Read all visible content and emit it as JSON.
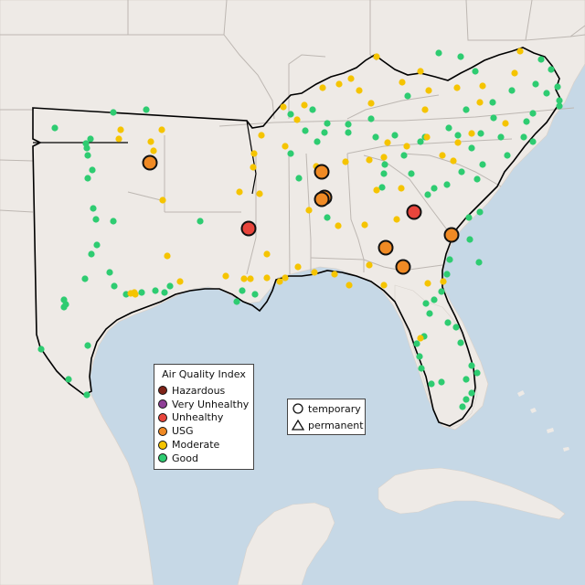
{
  "legend": {
    "title": "Air Quality Index",
    "items": [
      {
        "label": "Hazardous",
        "color": "#7e2318"
      },
      {
        "label": "Very Unhealthy",
        "color": "#8f3f97"
      },
      {
        "label": "Unhealthy",
        "color": "#e8453c"
      },
      {
        "label": "USG",
        "color": "#f08a24"
      },
      {
        "label": "Moderate",
        "color": "#f5c400"
      },
      {
        "label": "Good",
        "color": "#2ecc71"
      }
    ]
  },
  "shape_legend": {
    "temporary": "temporary",
    "permanent": "permanent"
  },
  "colors": {
    "water": "#c6d8e6",
    "land": "#eeeae6",
    "border": "#bdb7b2",
    "region_outline": "#000000"
  },
  "monitors": {
    "unhealthy": [
      [
        272,
        250
      ],
      [
        453,
        232
      ]
    ],
    "usg": [
      [
        164,
        178
      ],
      [
        352,
        188
      ],
      [
        355,
        216
      ],
      [
        352,
        218
      ],
      [
        494,
        257
      ],
      [
        422,
        271
      ],
      [
        441,
        292
      ]
    ],
    "moderate": [
      [
        132,
        142
      ],
      [
        130,
        152
      ],
      [
        165,
        155
      ],
      [
        177,
        142
      ],
      [
        168,
        165
      ],
      [
        178,
        219
      ],
      [
        183,
        280
      ],
      [
        197,
        308
      ],
      [
        247,
        302
      ],
      [
        267,
        305
      ],
      [
        274,
        305
      ],
      [
        292,
        304
      ],
      [
        306,
        308
      ],
      [
        312,
        304
      ],
      [
        326,
        292
      ],
      [
        344,
        298
      ],
      [
        366,
        300
      ],
      [
        382,
        312
      ],
      [
        420,
        312
      ],
      [
        404,
        290
      ],
      [
        399,
        246
      ],
      [
        434,
        240
      ],
      [
        412,
        208
      ],
      [
        439,
        206
      ],
      [
        420,
        172
      ],
      [
        424,
        156
      ],
      [
        445,
        160
      ],
      [
        467,
        150
      ],
      [
        484,
        170
      ],
      [
        501,
        156
      ],
      [
        516,
        146
      ],
      [
        525,
        112
      ],
      [
        553,
        135
      ],
      [
        569,
        56
      ],
      [
        563,
        80
      ],
      [
        528,
        94
      ],
      [
        500,
        96
      ],
      [
        469,
        99
      ],
      [
        440,
        90
      ],
      [
        406,
        113
      ],
      [
        393,
        99
      ],
      [
        384,
        86
      ],
      [
        371,
        92
      ],
      [
        353,
        96
      ],
      [
        333,
        115
      ],
      [
        325,
        131
      ],
      [
        310,
        117
      ],
      [
        286,
        148
      ],
      [
        278,
        168
      ],
      [
        277,
        183
      ],
      [
        262,
        210
      ],
      [
        284,
        212
      ],
      [
        292,
        278
      ],
      [
        148,
        322
      ],
      [
        147,
        320
      ],
      [
        143,
        321
      ],
      [
        312,
        160
      ],
      [
        346,
        182
      ],
      [
        338,
        230
      ],
      [
        370,
        247
      ],
      [
        412,
        62
      ],
      [
        460,
        78
      ],
      [
        465,
        120
      ],
      [
        485,
        308
      ],
      [
        468,
        310
      ],
      [
        460,
        370
      ],
      [
        496,
        176
      ],
      [
        378,
        177
      ],
      [
        404,
        175
      ]
    ],
    "good": [
      [
        60,
        140
      ],
      [
        99,
        152
      ],
      [
        94,
        157
      ],
      [
        95,
        162
      ],
      [
        96,
        170
      ],
      [
        124,
        123
      ],
      [
        160,
        120
      ],
      [
        101,
        186
      ],
      [
        96,
        195
      ],
      [
        102,
        228
      ],
      [
        105,
        240
      ],
      [
        124,
        242
      ],
      [
        106,
        268
      ],
      [
        100,
        278
      ],
      [
        93,
        305
      ],
      [
        120,
        298
      ],
      [
        125,
        313
      ],
      [
        138,
        322
      ],
      [
        155,
        320
      ],
      [
        170,
        318
      ],
      [
        180,
        320
      ],
      [
        186,
        313
      ],
      [
        70,
        328
      ],
      [
        70,
        336
      ],
      [
        72,
        333
      ],
      [
        45,
        382
      ],
      [
        96,
        378
      ],
      [
        75,
        415
      ],
      [
        95,
        432
      ],
      [
        219,
        242
      ],
      [
        259,
        330
      ],
      [
        265,
        318
      ],
      [
        279,
        322
      ],
      [
        318,
        125
      ],
      [
        318,
        168
      ],
      [
        347,
        155
      ],
      [
        355,
        145
      ],
      [
        358,
        135
      ],
      [
        381,
        145
      ],
      [
        406,
        130
      ],
      [
        411,
        150
      ],
      [
        432,
        148
      ],
      [
        420,
        190
      ],
      [
        450,
        190
      ],
      [
        475,
        206
      ],
      [
        468,
        213
      ],
      [
        489,
        202
      ],
      [
        505,
        188
      ],
      [
        516,
        162
      ],
      [
        522,
        196
      ],
      [
        528,
        180
      ],
      [
        555,
        170
      ],
      [
        548,
        150
      ],
      [
        573,
        150
      ],
      [
        583,
        155
      ],
      [
        576,
        133
      ],
      [
        583,
        124
      ],
      [
        612,
        116
      ],
      [
        610,
        95
      ],
      [
        603,
        76
      ],
      [
        592,
        65
      ],
      [
        520,
        78
      ],
      [
        504,
        62
      ],
      [
        480,
        58
      ],
      [
        446,
        105
      ],
      [
        465,
        150
      ],
      [
        513,
        238
      ],
      [
        525,
        232
      ],
      [
        514,
        262
      ],
      [
        524,
        287
      ],
      [
        492,
        284
      ],
      [
        489,
        300
      ],
      [
        483,
        319
      ],
      [
        475,
        328
      ],
      [
        466,
        332
      ],
      [
        470,
        343
      ],
      [
        490,
        353
      ],
      [
        499,
        358
      ],
      [
        504,
        375
      ],
      [
        464,
        368
      ],
      [
        456,
        376
      ],
      [
        459,
        390
      ],
      [
        461,
        403
      ],
      [
        472,
        420
      ],
      [
        483,
        418
      ],
      [
        510,
        415
      ],
      [
        516,
        400
      ],
      [
        522,
        408
      ],
      [
        516,
        430
      ],
      [
        510,
        437
      ],
      [
        506,
        445
      ],
      [
        381,
        136
      ],
      [
        334,
        143
      ],
      [
        342,
        120
      ],
      [
        327,
        195
      ],
      [
        358,
        238
      ],
      [
        418,
        205
      ],
      [
        421,
        180
      ],
      [
        442,
        170
      ],
      [
        460,
        155
      ],
      [
        491,
        140
      ],
      [
        501,
        148
      ],
      [
        539,
        112
      ],
      [
        560,
        99
      ],
      [
        586,
        92
      ],
      [
        598,
        102
      ],
      [
        612,
        110
      ],
      [
        540,
        129
      ],
      [
        526,
        146
      ],
      [
        510,
        120
      ]
    ]
  }
}
